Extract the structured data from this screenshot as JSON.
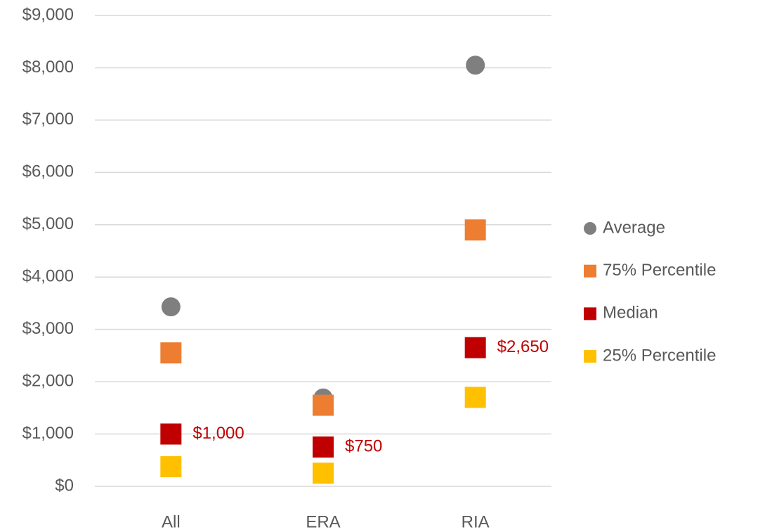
{
  "chart_data": {
    "type": "dot",
    "categories": [
      "All",
      "ERA",
      "RIA"
    ],
    "series": [
      {
        "name": "Average",
        "color": "#7f7f7f",
        "marker": "circle",
        "values": [
          3430,
          1690,
          8050
        ]
      },
      {
        "name": "75% Percentile",
        "color": "#ed7d31",
        "marker": "square",
        "values": [
          2550,
          1550,
          4900
        ]
      },
      {
        "name": "Median",
        "color": "#c00000",
        "marker": "square",
        "values": [
          1000,
          750,
          2650
        ],
        "value_labels": [
          "$1,000",
          "$750",
          "$2,650"
        ]
      },
      {
        "name": "25% Percentile",
        "color": "#ffc000",
        "marker": "square",
        "values": [
          375,
          250,
          1700
        ]
      }
    ],
    "ylim": [
      0,
      9000
    ],
    "yticks": [
      {
        "value": 0,
        "label": "$0"
      },
      {
        "value": 1000,
        "label": "$1,000"
      },
      {
        "value": 2000,
        "label": "$2,000"
      },
      {
        "value": 3000,
        "label": "$3,000"
      },
      {
        "value": 4000,
        "label": "$4,000"
      },
      {
        "value": 5000,
        "label": "$5,000"
      },
      {
        "value": 6000,
        "label": "$6,000"
      },
      {
        "value": 7000,
        "label": "$7,000"
      },
      {
        "value": 8000,
        "label": "$8,000"
      },
      {
        "value": 9000,
        "label": "$9,000"
      }
    ],
    "grid": true,
    "legend": "right"
  }
}
